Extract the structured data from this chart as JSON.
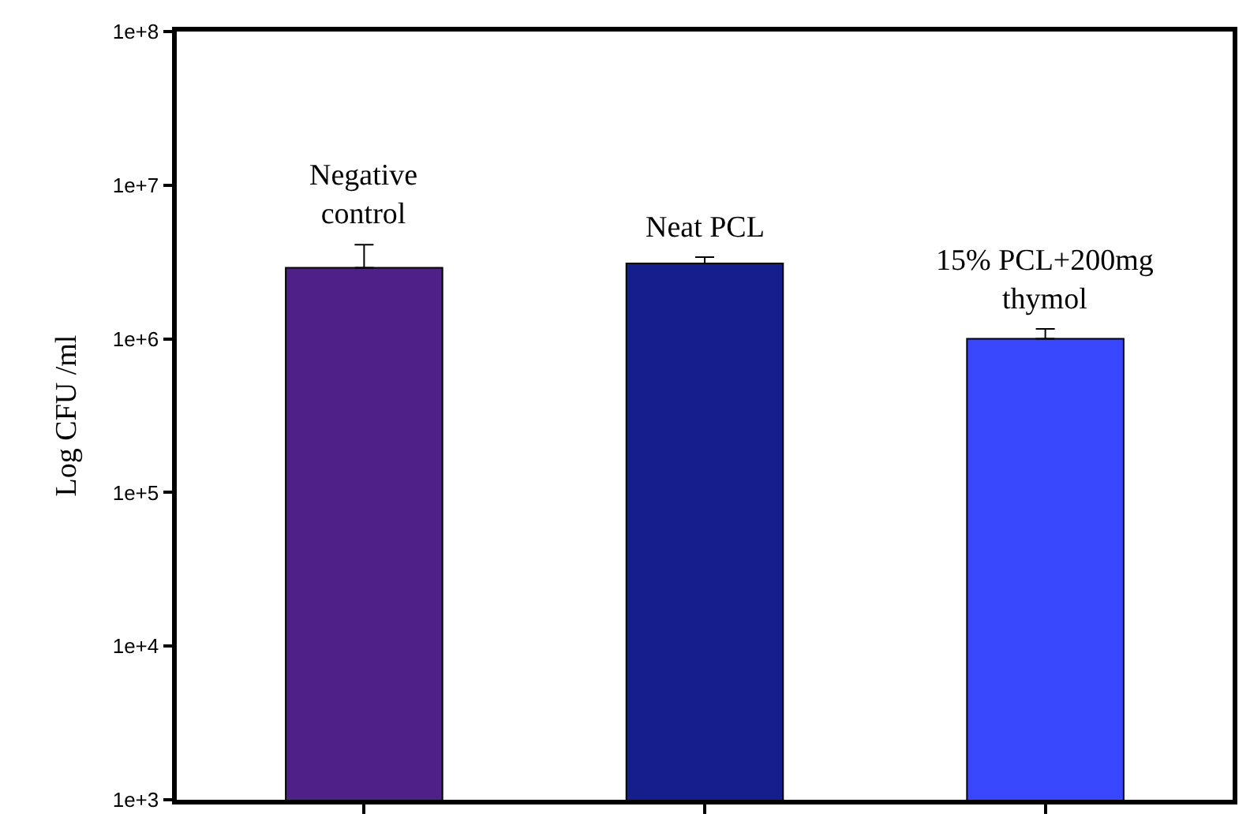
{
  "chart_data": {
    "type": "bar",
    "ylabel": "Log CFU /ml",
    "categories": [
      "Negative control",
      "Neat PCL",
      "15% PCL+200mg thymol"
    ],
    "values": [
      2900000,
      3100000,
      1000000
    ],
    "colors": [
      "#4f2088",
      "#141e8c",
      "#3846fc"
    ],
    "errors": [
      [
        2900000,
        4100000
      ],
      [
        3100000,
        3400000
      ],
      [
        1000000,
        1160000
      ]
    ],
    "log": true,
    "ylim": [
      1000,
      100000000
    ],
    "yticks": [
      {
        "value": 1000,
        "label": "1e+3"
      },
      {
        "value": 10000,
        "label": "1e+4"
      },
      {
        "value": 100000,
        "label": "1e+5"
      },
      {
        "value": 1000000,
        "label": "1e+6"
      },
      {
        "value": 10000000,
        "label": "1e+7"
      },
      {
        "value": 100000000,
        "label": "1e+8"
      }
    ],
    "tick_labels": "y"
  }
}
